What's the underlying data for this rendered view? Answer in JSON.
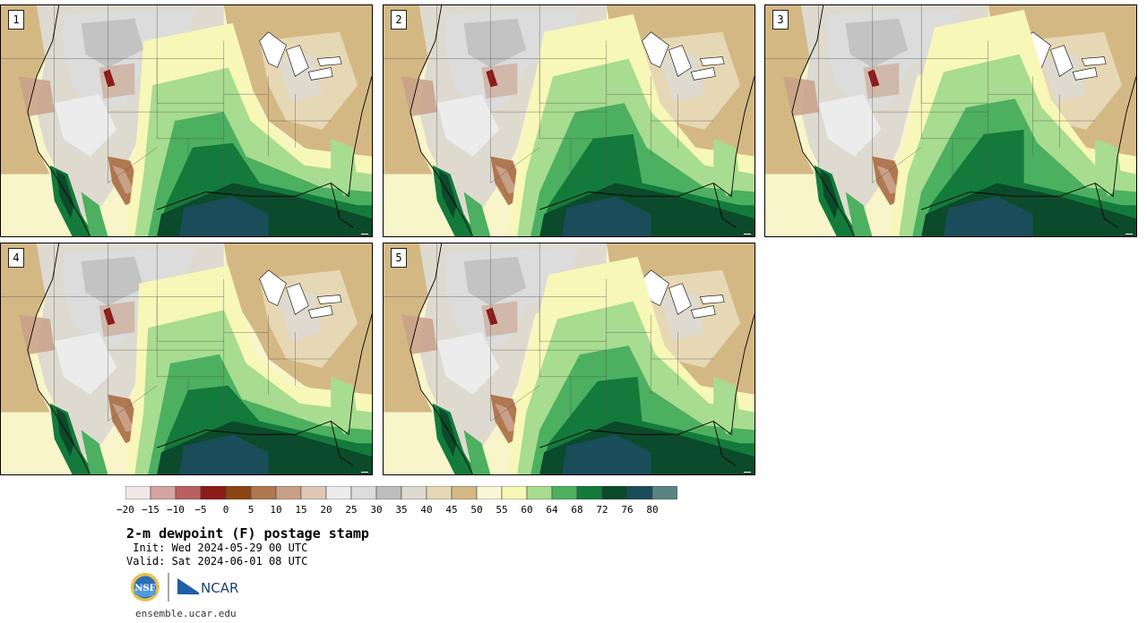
{
  "panels": [
    {
      "label": "1"
    },
    {
      "label": "2"
    },
    {
      "label": "3"
    },
    {
      "label": "4"
    },
    {
      "label": "5"
    }
  ],
  "colorbar": {
    "colors": [
      "#f2e6e6",
      "#d6a3a3",
      "#b86060",
      "#8e1a1a",
      "#8b4513",
      "#b07850",
      "#c8a088",
      "#e0c8b8",
      "#ececec",
      "#dcdcdc",
      "#bdbdbd",
      "#dedad0",
      "#e6d8b4",
      "#d4b884",
      "#f8f8d8",
      "#f7f7b8",
      "#a8dc90",
      "#4cb060",
      "#137a3c",
      "#0b4a2a",
      "#1a4c5a",
      "#5a8484"
    ],
    "tick_labels": [
      "−20",
      "−15",
      "−10",
      "−5",
      "0",
      "5",
      "10",
      "15",
      "20",
      "25",
      "30",
      "35",
      "40",
      "45",
      "50",
      "55",
      "60",
      "64",
      "68",
      "72",
      "76",
      "80"
    ]
  },
  "title": "2-m dewpoint (F) postage stamp",
  "init_text": " Init: Wed 2024-05-29 00 UTC",
  "valid_text": "Valid: Sat 2024-06-01 08 UTC",
  "logos": {
    "nsf": "NSF",
    "ncar": "NCAR"
  },
  "site": "ensemble.ucar.edu"
}
